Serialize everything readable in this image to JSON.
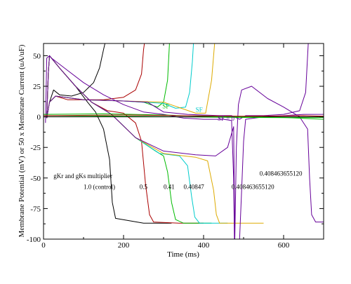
{
  "chart_data": {
    "type": "line",
    "xlabel": "Time (ms)",
    "ylabel": "Membrane Potential (mV) or 50 x Membrane Current (uA/uF)",
    "xlim": [
      0,
      700
    ],
    "ylim": [
      -100,
      60
    ],
    "x_ticks": [
      0,
      200,
      400,
      600
    ],
    "y_ticks": [
      50,
      25,
      0,
      -25,
      -50,
      -75,
      -100
    ],
    "y_tick_labels": [
      "50",
      "25",
      "0",
      "-25",
      "-50",
      "-75",
      "-100"
    ],
    "grid": false,
    "series": [
      {
        "color": "#000000",
        "points": [
          [
            8,
            -1
          ],
          [
            12,
            35
          ],
          [
            15,
            50
          ],
          [
            40,
            40
          ],
          [
            80,
            25
          ],
          [
            110,
            12
          ],
          [
            130,
            4
          ],
          [
            150,
            -10
          ],
          [
            165,
            -35
          ],
          [
            172,
            -70
          ],
          [
            180,
            -83
          ],
          [
            250,
            -87
          ],
          [
            320,
            -87
          ]
        ]
      },
      {
        "color": "#000000",
        "points": [
          [
            8,
            -1
          ],
          [
            15,
            12
          ],
          [
            25,
            22
          ],
          [
            40,
            18
          ],
          [
            70,
            17
          ],
          [
            100,
            20
          ],
          [
            125,
            28
          ],
          [
            140,
            40
          ],
          [
            150,
            55
          ],
          [
            155,
            62
          ]
        ]
      },
      {
        "color": "#aa0000",
        "points": [
          [
            8,
            -1
          ],
          [
            12,
            35
          ],
          [
            15,
            50
          ],
          [
            40,
            40
          ],
          [
            80,
            25
          ],
          [
            120,
            12
          ],
          [
            160,
            5
          ],
          [
            200,
            3
          ],
          [
            230,
            -5
          ],
          [
            245,
            -20
          ],
          [
            255,
            -55
          ],
          [
            265,
            -80
          ],
          [
            275,
            -86
          ],
          [
            340,
            -87
          ],
          [
            400,
            -87
          ]
        ]
      },
      {
        "color": "#aa0000",
        "points": [
          [
            8,
            -1
          ],
          [
            15,
            12
          ],
          [
            30,
            17
          ],
          [
            60,
            14
          ],
          [
            100,
            14
          ],
          [
            150,
            14
          ],
          [
            200,
            16
          ],
          [
            230,
            22
          ],
          [
            245,
            35
          ],
          [
            250,
            55
          ],
          [
            253,
            62
          ]
        ]
      },
      {
        "color": "#00bb00",
        "points": [
          [
            8,
            -1
          ],
          [
            12,
            35
          ],
          [
            15,
            50
          ],
          [
            40,
            40
          ],
          [
            80,
            25
          ],
          [
            120,
            12
          ],
          [
            170,
            2
          ],
          [
            230,
            -17
          ],
          [
            280,
            -28
          ],
          [
            300,
            -32
          ],
          [
            310,
            -45
          ],
          [
            320,
            -70
          ],
          [
            330,
            -84
          ],
          [
            350,
            -87
          ],
          [
            420,
            -87
          ]
        ]
      },
      {
        "color": "#00bb00",
        "points": [
          [
            8,
            -1
          ],
          [
            15,
            12
          ],
          [
            30,
            17
          ],
          [
            100,
            14
          ],
          [
            200,
            13
          ],
          [
            250,
            12
          ],
          [
            285,
            8
          ],
          [
            300,
            12
          ],
          [
            310,
            30
          ],
          [
            315,
            62
          ]
        ]
      },
      {
        "color": "#00cccc",
        "points": [
          [
            8,
            -1
          ],
          [
            12,
            35
          ],
          [
            15,
            50
          ],
          [
            40,
            40
          ],
          [
            80,
            25
          ],
          [
            120,
            12
          ],
          [
            170,
            2
          ],
          [
            230,
            -17
          ],
          [
            290,
            -30
          ],
          [
            340,
            -32
          ],
          [
            360,
            -40
          ],
          [
            370,
            -65
          ],
          [
            378,
            -82
          ],
          [
            390,
            -87
          ],
          [
            460,
            -87
          ]
        ]
      },
      {
        "color": "#00cccc",
        "points": [
          [
            8,
            -1
          ],
          [
            15,
            12
          ],
          [
            30,
            17
          ],
          [
            100,
            14
          ],
          [
            200,
            13
          ],
          [
            300,
            11
          ],
          [
            330,
            7
          ],
          [
            355,
            8
          ],
          [
            365,
            20
          ],
          [
            372,
            45
          ],
          [
            375,
            62
          ]
        ]
      },
      {
        "color": "#ddaa00",
        "points": [
          [
            8,
            -1
          ],
          [
            12,
            35
          ],
          [
            15,
            50
          ],
          [
            40,
            40
          ],
          [
            80,
            25
          ],
          [
            120,
            12
          ],
          [
            170,
            2
          ],
          [
            230,
            -17
          ],
          [
            300,
            -30
          ],
          [
            380,
            -33
          ],
          [
            410,
            -36
          ],
          [
            425,
            -60
          ],
          [
            432,
            -80
          ],
          [
            440,
            -87
          ],
          [
            550,
            -87
          ]
        ]
      },
      {
        "color": "#ddaa00",
        "points": [
          [
            8,
            -1
          ],
          [
            15,
            12
          ],
          [
            30,
            17
          ],
          [
            100,
            14
          ],
          [
            200,
            13
          ],
          [
            300,
            12
          ],
          [
            380,
            3
          ],
          [
            405,
            3
          ],
          [
            420,
            30
          ],
          [
            428,
            62
          ]
        ]
      },
      {
        "color": "#660099",
        "points": [
          [
            8,
            -1
          ],
          [
            12,
            35
          ],
          [
            15,
            50
          ],
          [
            40,
            40
          ],
          [
            80,
            25
          ],
          [
            120,
            12
          ],
          [
            170,
            2
          ],
          [
            230,
            -17
          ],
          [
            300,
            -28
          ],
          [
            380,
            -31
          ],
          [
            430,
            -32
          ],
          [
            460,
            -25
          ],
          [
            475,
            -8
          ],
          [
            478,
            -100
          ],
          [
            482,
            -25
          ],
          [
            487,
            10
          ],
          [
            495,
            22
          ],
          [
            520,
            25
          ],
          [
            560,
            15
          ],
          [
            600,
            8
          ],
          [
            640,
            0
          ],
          [
            660,
            -10
          ],
          [
            665,
            -50
          ],
          [
            670,
            -80
          ],
          [
            680,
            -86
          ],
          [
            700,
            -86
          ]
        ]
      },
      {
        "color": "#660099",
        "points": [
          [
            8,
            -1
          ],
          [
            15,
            12
          ],
          [
            30,
            17
          ],
          [
            100,
            14
          ],
          [
            200,
            13
          ],
          [
            260,
            12
          ],
          [
            300,
            4
          ],
          [
            360,
            2
          ],
          [
            440,
            1
          ],
          [
            470,
            1
          ],
          [
            490,
            -2
          ],
          [
            505,
            1
          ],
          [
            550,
            1
          ],
          [
            600,
            2
          ],
          [
            640,
            5
          ],
          [
            655,
            20
          ],
          [
            662,
            62
          ]
        ]
      },
      {
        "color": "#660099",
        "points": [
          [
            5,
            -5
          ],
          [
            8,
            48
          ],
          [
            15,
            50
          ],
          [
            20,
            48
          ],
          [
            60,
            38
          ],
          [
            100,
            28
          ],
          [
            150,
            18
          ],
          [
            200,
            10
          ],
          [
            250,
            4
          ],
          [
            300,
            2
          ],
          [
            350,
            -1
          ],
          [
            400,
            -2
          ],
          [
            450,
            -2
          ],
          [
            470,
            -3
          ],
          [
            475,
            -50
          ],
          [
            477,
            -100
          ]
        ]
      },
      {
        "color": "#660099",
        "points": [
          [
            490,
            -100
          ],
          [
            495,
            -60
          ],
          [
            500,
            -20
          ],
          [
            505,
            -2
          ],
          [
            550,
            0
          ],
          [
            600,
            1
          ],
          [
            650,
            2
          ],
          [
            700,
            2
          ]
        ]
      },
      {
        "color": "#00bb00",
        "points": [
          [
            0,
            1
          ],
          [
            100,
            0.8
          ],
          [
            200,
            0.5
          ],
          [
            300,
            0.2
          ],
          [
            400,
            -0.2
          ],
          [
            500,
            -0.5
          ],
          [
            600,
            -0.6
          ],
          [
            700,
            -0.5
          ]
        ]
      },
      {
        "color": "#000000",
        "points": [
          [
            0,
            0
          ],
          [
            700,
            0
          ]
        ]
      },
      {
        "color": "#00bb00",
        "points": [
          [
            0,
            2
          ],
          [
            150,
            2.5
          ],
          [
            300,
            1.5
          ],
          [
            450,
            0
          ],
          [
            600,
            -0.5
          ],
          [
            700,
            -2
          ]
        ]
      },
      {
        "color": "#aa0000",
        "points": [
          [
            0,
            1
          ],
          [
            200,
            1.5
          ],
          [
            350,
            1
          ],
          [
            500,
            0.5
          ],
          [
            650,
            1
          ],
          [
            700,
            0.5
          ]
        ]
      }
    ],
    "annotations": [
      {
        "text": "gKr and gKs multiplier",
        "x": 25,
        "y": -50,
        "color": "#000000"
      },
      {
        "text": "1.0 (control)",
        "x": 100,
        "y": -59,
        "color": "#000000"
      },
      {
        "text": "0.5",
        "x": 240,
        "y": -59,
        "color": "#000000"
      },
      {
        "text": "0.41",
        "x": 300,
        "y": -59,
        "color": "#000000"
      },
      {
        "text": "0.40847",
        "x": 350,
        "y": -59,
        "color": "#000000"
      },
      {
        "text": "0.408463655120",
        "x": 470,
        "y": -59,
        "color": "#000000"
      },
      {
        "text": "0.408463655120",
        "x": 540,
        "y": -48,
        "color": "#000000"
      },
      {
        "text": "SF",
        "x": 297,
        "y": 7,
        "color": "#00bb00"
      },
      {
        "text": "SF",
        "x": 380,
        "y": 4,
        "color": "#00cccc"
      },
      {
        "text": "SF = 0",
        "x": 435,
        "y": -3,
        "color": "#660099"
      }
    ]
  }
}
